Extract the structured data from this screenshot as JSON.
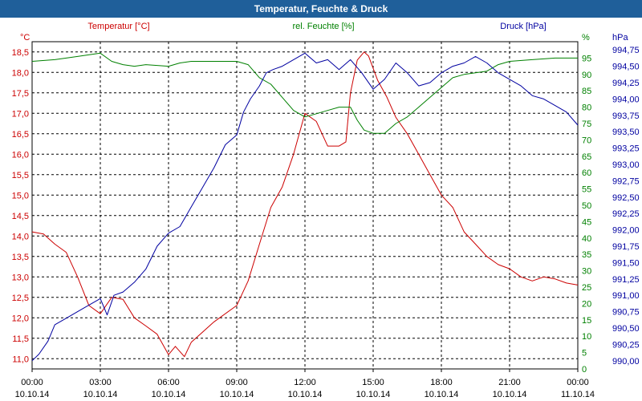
{
  "window": {
    "title": "Temperatur, Feuchte & Druck"
  },
  "chart_data": {
    "type": "line",
    "title": "Temperatur, Feuchte & Druck",
    "x_ticks": [
      {
        "time": "00:00",
        "date": "10.10.14"
      },
      {
        "time": "03:00",
        "date": "10.10.14"
      },
      {
        "time": "06:00",
        "date": "10.10.14"
      },
      {
        "time": "09:00",
        "date": "10.10.14"
      },
      {
        "time": "12:00",
        "date": "10.10.14"
      },
      {
        "time": "15:00",
        "date": "10.10.14"
      },
      {
        "time": "18:00",
        "date": "10.10.14"
      },
      {
        "time": "21:00",
        "date": "10.10.14"
      },
      {
        "time": "00:00",
        "date": "11.10.14"
      }
    ],
    "xlim_hours": [
      0,
      24
    ],
    "grid": true,
    "axes": {
      "temperature": {
        "unit": "°C",
        "label": "Temperatur [°C]",
        "color": "#cc0000",
        "ylim": [
          10.75,
          18.75
        ],
        "ticks": [
          "11,0",
          "11,5",
          "12,0",
          "12,5",
          "13,0",
          "13,5",
          "14,0",
          "14,5",
          "15,0",
          "15,5",
          "16,0",
          "16,5",
          "17,0",
          "17,5",
          "18,0",
          "18,5"
        ],
        "tick_values": [
          11.0,
          11.5,
          12.0,
          12.5,
          13.0,
          13.5,
          14.0,
          14.5,
          15.0,
          15.5,
          16.0,
          16.5,
          17.0,
          17.5,
          18.0,
          18.5
        ]
      },
      "humidity": {
        "unit": "%",
        "label": "rel. Feuchte [%]",
        "color": "#008000",
        "ylim": [
          0,
          100
        ],
        "ticks": [
          "0",
          "5",
          "10",
          "15",
          "20",
          "25",
          "30",
          "35",
          "40",
          "45",
          "50",
          "55",
          "60",
          "65",
          "70",
          "75",
          "80",
          "85",
          "90",
          "95"
        ],
        "tick_values": [
          0,
          5,
          10,
          15,
          20,
          25,
          30,
          35,
          40,
          45,
          50,
          55,
          60,
          65,
          70,
          75,
          80,
          85,
          90,
          95
        ]
      },
      "pressure": {
        "unit": "hPa",
        "label": "Druck [hPa]",
        "color": "#0000a0",
        "ylim": [
          989.875,
          994.875
        ],
        "ticks": [
          "990,00",
          "990,25",
          "990,50",
          "990,75",
          "991,00",
          "991,25",
          "991,50",
          "991,75",
          "992,00",
          "992,25",
          "992,50",
          "992,75",
          "993,00",
          "993,25",
          "993,50",
          "993,75",
          "994,00",
          "994,25",
          "994,50",
          "994,75"
        ],
        "tick_values": [
          990.0,
          990.25,
          990.5,
          990.75,
          991.0,
          991.25,
          991.5,
          991.75,
          992.0,
          992.25,
          992.5,
          992.75,
          993.0,
          993.25,
          993.5,
          993.75,
          994.0,
          994.25,
          994.5,
          994.75
        ]
      }
    },
    "series": [
      {
        "name": "Temperatur",
        "unit": "°C",
        "axis": "temperature",
        "color": "#cc0000",
        "points": [
          [
            0,
            14.1
          ],
          [
            0.5,
            14.05
          ],
          [
            1,
            13.8
          ],
          [
            1.5,
            13.6
          ],
          [
            2,
            13.0
          ],
          [
            2.5,
            12.3
          ],
          [
            3,
            12.1
          ],
          [
            3.5,
            12.5
          ],
          [
            4,
            12.45
          ],
          [
            4.5,
            12.0
          ],
          [
            5,
            11.8
          ],
          [
            5.5,
            11.6
          ],
          [
            6,
            11.1
          ],
          [
            6.3,
            11.3
          ],
          [
            6.7,
            11.05
          ],
          [
            7,
            11.4
          ],
          [
            8,
            11.9
          ],
          [
            9,
            12.3
          ],
          [
            9.5,
            12.9
          ],
          [
            10,
            13.8
          ],
          [
            10.5,
            14.7
          ],
          [
            11,
            15.2
          ],
          [
            11.5,
            16.0
          ],
          [
            12,
            17.0
          ],
          [
            12.5,
            16.8
          ],
          [
            13,
            16.2
          ],
          [
            13.5,
            16.2
          ],
          [
            13.8,
            16.3
          ],
          [
            14,
            17.5
          ],
          [
            14.3,
            18.3
          ],
          [
            14.6,
            18.5
          ],
          [
            14.8,
            18.4
          ],
          [
            15.2,
            17.8
          ],
          [
            15.6,
            17.4
          ],
          [
            16,
            16.9
          ],
          [
            16.5,
            16.5
          ],
          [
            17,
            16.0
          ],
          [
            17.5,
            15.5
          ],
          [
            18,
            15.0
          ],
          [
            18.5,
            14.7
          ],
          [
            19,
            14.1
          ],
          [
            19.5,
            13.8
          ],
          [
            20,
            13.5
          ],
          [
            20.5,
            13.3
          ],
          [
            21,
            13.2
          ],
          [
            21.5,
            13.0
          ],
          [
            22,
            12.9
          ],
          [
            22.5,
            13.0
          ],
          [
            23,
            12.95
          ],
          [
            23.5,
            12.85
          ],
          [
            24,
            12.8
          ]
        ]
      },
      {
        "name": "rel. Feuchte",
        "unit": "%",
        "axis": "humidity",
        "color": "#008000",
        "points": [
          [
            0,
            94
          ],
          [
            1,
            94.5
          ],
          [
            2,
            95.5
          ],
          [
            3,
            96.5
          ],
          [
            3.5,
            94
          ],
          [
            4,
            93
          ],
          [
            4.5,
            92.5
          ],
          [
            5,
            93
          ],
          [
            6,
            92.5
          ],
          [
            6.5,
            93.5
          ],
          [
            7,
            94
          ],
          [
            8,
            94
          ],
          [
            9,
            94
          ],
          [
            9.5,
            93
          ],
          [
            10,
            89
          ],
          [
            10.5,
            87
          ],
          [
            11,
            83
          ],
          [
            11.5,
            79
          ],
          [
            12,
            77
          ],
          [
            12.5,
            78
          ],
          [
            13,
            79
          ],
          [
            13.5,
            80
          ],
          [
            14,
            80
          ],
          [
            14.3,
            76
          ],
          [
            14.6,
            73
          ],
          [
            15,
            72
          ],
          [
            15.5,
            72
          ],
          [
            16,
            75
          ],
          [
            16.5,
            77
          ],
          [
            17,
            80
          ],
          [
            17.5,
            83
          ],
          [
            18,
            86
          ],
          [
            18.5,
            89
          ],
          [
            19,
            90
          ],
          [
            20,
            91
          ],
          [
            20.5,
            93
          ],
          [
            21,
            94
          ],
          [
            22,
            94.5
          ],
          [
            23,
            95
          ],
          [
            24,
            95
          ]
        ]
      },
      {
        "name": "Druck",
        "unit": "hPa",
        "axis": "pressure",
        "color": "#0000a0",
        "points": [
          [
            0,
            990.0
          ],
          [
            0.3,
            990.1
          ],
          [
            0.7,
            990.3
          ],
          [
            1,
            990.55
          ],
          [
            1.5,
            990.65
          ],
          [
            2,
            990.75
          ],
          [
            2.5,
            990.85
          ],
          [
            3,
            990.95
          ],
          [
            3.3,
            990.7
          ],
          [
            3.6,
            991.0
          ],
          [
            4,
            991.05
          ],
          [
            4.5,
            991.2
          ],
          [
            5,
            991.4
          ],
          [
            5.5,
            991.75
          ],
          [
            6,
            991.95
          ],
          [
            6.5,
            992.05
          ],
          [
            7,
            992.35
          ],
          [
            7.5,
            992.65
          ],
          [
            8,
            992.95
          ],
          [
            8.5,
            993.3
          ],
          [
            9,
            993.45
          ],
          [
            9.3,
            993.8
          ],
          [
            9.6,
            994.0
          ],
          [
            10,
            994.2
          ],
          [
            10.3,
            994.4
          ],
          [
            10.6,
            994.45
          ],
          [
            11,
            994.5
          ],
          [
            11.5,
            994.6
          ],
          [
            12,
            994.7
          ],
          [
            12.5,
            994.55
          ],
          [
            13,
            994.6
          ],
          [
            13.5,
            994.45
          ],
          [
            14,
            994.6
          ],
          [
            14.5,
            994.4
          ],
          [
            15,
            994.15
          ],
          [
            15.5,
            994.3
          ],
          [
            16,
            994.55
          ],
          [
            16.5,
            994.4
          ],
          [
            17,
            994.2
          ],
          [
            17.5,
            994.25
          ],
          [
            18,
            994.4
          ],
          [
            18.5,
            994.5
          ],
          [
            19,
            994.55
          ],
          [
            19.5,
            994.65
          ],
          [
            20,
            994.55
          ],
          [
            20.5,
            994.4
          ],
          [
            21,
            994.3
          ],
          [
            21.5,
            994.2
          ],
          [
            22,
            994.05
          ],
          [
            22.5,
            994.0
          ],
          [
            23,
            993.9
          ],
          [
            23.5,
            993.8
          ],
          [
            24,
            993.6
          ]
        ]
      }
    ]
  }
}
